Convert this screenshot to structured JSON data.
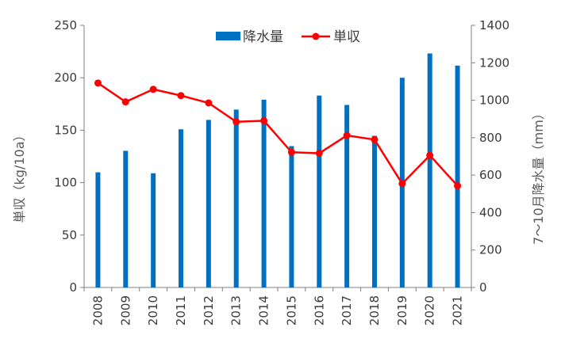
{
  "chart_data": {
    "type": "bar+line",
    "title": "",
    "ylabel_left": "単収（kg/10a）",
    "ylabel_right": "7～10月降水量（mm）",
    "xlabel": "",
    "categories": [
      "2008",
      "2009",
      "2010",
      "2011",
      "2012",
      "2013",
      "2014",
      "2015",
      "2016",
      "2017",
      "2018",
      "2019",
      "2020",
      "2021"
    ],
    "ylim_left": [
      0,
      250
    ],
    "yticks_left": [
      0,
      50,
      100,
      150,
      200,
      250
    ],
    "ylim_right": [
      0,
      1400
    ],
    "yticks_right": [
      0,
      200,
      400,
      600,
      800,
      1000,
      1200,
      1400
    ],
    "grid": false,
    "legend_position": "top-center",
    "series": [
      {
        "name": "降水量",
        "kind": "bar",
        "axis": "right",
        "color": "#0070c0",
        "values": [
          615,
          730,
          610,
          845,
          895,
          950,
          1003,
          755,
          1025,
          975,
          810,
          1120,
          1250,
          1185
        ]
      },
      {
        "name": "単収",
        "kind": "line",
        "axis": "left",
        "color": "#ff0000",
        "values": [
          195,
          177,
          189,
          183,
          176,
          158,
          159,
          129,
          128,
          145,
          141,
          99,
          126,
          97
        ]
      }
    ]
  }
}
